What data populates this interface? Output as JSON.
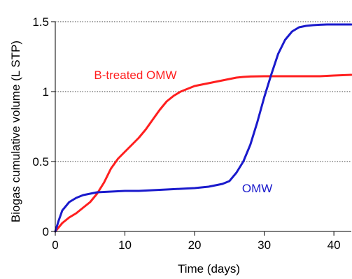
{
  "chart_data": {
    "type": "line",
    "title": "",
    "xlabel": "Time (days)",
    "ylabel": "Biogas cumulative volume (L STP)",
    "xlim": [
      0,
      42.5
    ],
    "ylim": [
      0,
      1.5
    ],
    "xticks": [
      0,
      10,
      20,
      30,
      40
    ],
    "yticks": [
      0,
      0.5,
      1,
      1.5
    ],
    "xtick_labels": [
      "0",
      "10",
      "20",
      "30",
      "40"
    ],
    "ytick_labels": [
      "0",
      "0.5",
      "1",
      "1.5"
    ],
    "grid": "horizontal dotted at 0.5, 1, 1.5",
    "legend": "inline labels next to lines",
    "series": [
      {
        "name": "B-treated OMW",
        "color": "#ff1f1f",
        "x": [
          0,
          0.5,
          1,
          2,
          3,
          4,
          5,
          6,
          7,
          8,
          9,
          10,
          11,
          12,
          13,
          14,
          15,
          16,
          17,
          18,
          19,
          20,
          21,
          22,
          23,
          24,
          25,
          26,
          27,
          28,
          30,
          32,
          34,
          36,
          38,
          40,
          42.5
        ],
        "y": [
          0,
          0.03,
          0.06,
          0.1,
          0.13,
          0.17,
          0.21,
          0.27,
          0.35,
          0.45,
          0.52,
          0.57,
          0.62,
          0.67,
          0.73,
          0.8,
          0.87,
          0.93,
          0.97,
          1.0,
          1.02,
          1.04,
          1.05,
          1.06,
          1.07,
          1.08,
          1.09,
          1.1,
          1.105,
          1.108,
          1.11,
          1.11,
          1.11,
          1.11,
          1.11,
          1.115,
          1.12
        ]
      },
      {
        "name": "OMW",
        "color": "#1a1acc",
        "x": [
          0,
          0.5,
          1,
          2,
          3,
          4,
          5,
          6,
          8,
          10,
          12,
          14,
          16,
          18,
          20,
          22,
          24,
          25,
          26,
          27,
          28,
          29,
          30,
          31,
          32,
          33,
          34,
          35,
          36,
          37,
          38,
          39,
          40,
          42.5
        ],
        "y": [
          0,
          0.08,
          0.15,
          0.21,
          0.24,
          0.26,
          0.27,
          0.28,
          0.285,
          0.29,
          0.29,
          0.295,
          0.3,
          0.305,
          0.31,
          0.32,
          0.34,
          0.36,
          0.42,
          0.5,
          0.62,
          0.78,
          0.96,
          1.12,
          1.27,
          1.37,
          1.43,
          1.46,
          1.47,
          1.475,
          1.478,
          1.48,
          1.48,
          1.48
        ]
      }
    ],
    "annotations": [
      {
        "text": "B-treated OMW",
        "series": "B-treated OMW",
        "color": "#ff1f1f",
        "at": [
          11.5,
          1.09
        ]
      },
      {
        "text": "OMW",
        "series": "OMW",
        "color": "#1a1acc",
        "at": [
          29,
          0.28
        ]
      }
    ]
  }
}
